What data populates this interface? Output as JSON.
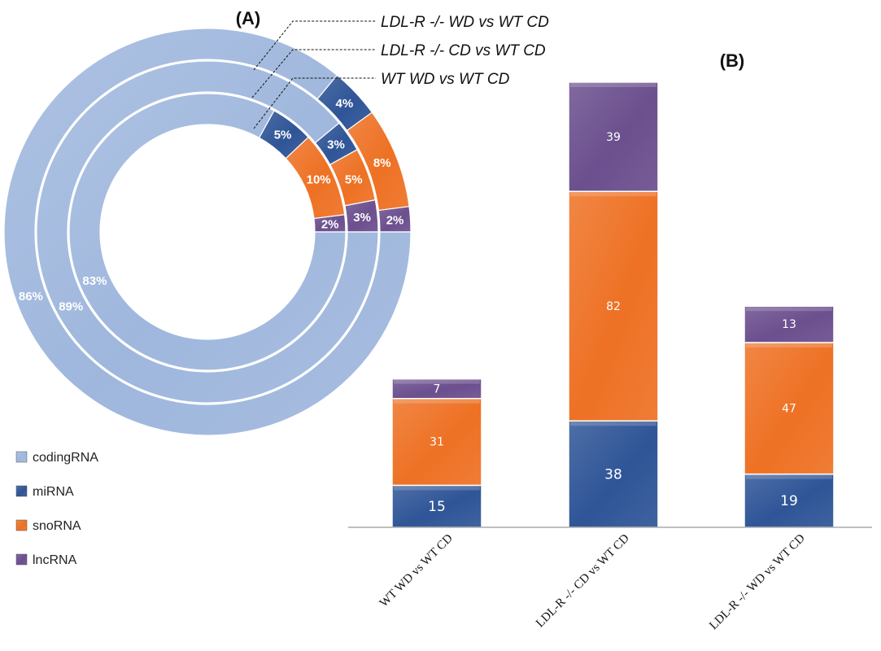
{
  "panel_a_label": "(A)",
  "panel_b_label": "(B)",
  "colors": {
    "codingRNA": "#9fb7dd",
    "miRNA": "#2f5597",
    "snoRNA": "#ee7124",
    "lncRNA": "#6b4f8e"
  },
  "legend": [
    {
      "key": "codingRNA",
      "label": "codingRNA"
    },
    {
      "key": "miRNA",
      "label": "miRNA"
    },
    {
      "key": "snoRNA",
      "label": "snoRNA"
    },
    {
      "key": "lncRNA",
      "label": "lncRNA"
    }
  ],
  "chart_data": [
    {
      "type": "pie",
      "variant": "nested-donut",
      "rings": [
        {
          "name": "LDL-R -/- WD vs WT CD",
          "position": "outer",
          "values": {
            "codingRNA": 86,
            "miRNA": 4,
            "snoRNA": 8,
            "lncRNA": 2
          },
          "labels": {
            "codingRNA": "86%",
            "miRNA": "4%",
            "snoRNA": "8%",
            "lncRNA": "2%"
          }
        },
        {
          "name": "LDL-R -/- CD vs WT CD",
          "position": "middle",
          "values": {
            "codingRNA": 89,
            "miRNA": 3,
            "snoRNA": 5,
            "lncRNA": 3
          },
          "labels": {
            "codingRNA": "89%",
            "miRNA": "3%",
            "snoRNA": "5%",
            "lncRNA": "3%"
          }
        },
        {
          "name": "WT WD vs WT CD",
          "position": "inner",
          "values": {
            "codingRNA": 83,
            "miRNA": 5,
            "snoRNA": 10,
            "lncRNA": 2
          },
          "labels": {
            "codingRNA": "83%",
            "miRNA": "5%",
            "snoRNA": "10%",
            "lncRNA": "2%"
          }
        }
      ]
    },
    {
      "type": "bar",
      "stacked": true,
      "categories": [
        "WT WD vs WT CD",
        "LDL-R -/- CD vs WT CD",
        "LDL-R -/- WD vs WT CD"
      ],
      "series": [
        {
          "name": "miRNA",
          "key": "miRNA",
          "values": [
            15,
            38,
            19
          ]
        },
        {
          "name": "snoRNA",
          "key": "snoRNA",
          "values": [
            31,
            82,
            47
          ]
        },
        {
          "name": "lncRNA",
          "key": "lncRNA",
          "values": [
            7,
            39,
            13
          ]
        }
      ],
      "ylim": [
        0,
        159
      ],
      "grid": false
    }
  ]
}
